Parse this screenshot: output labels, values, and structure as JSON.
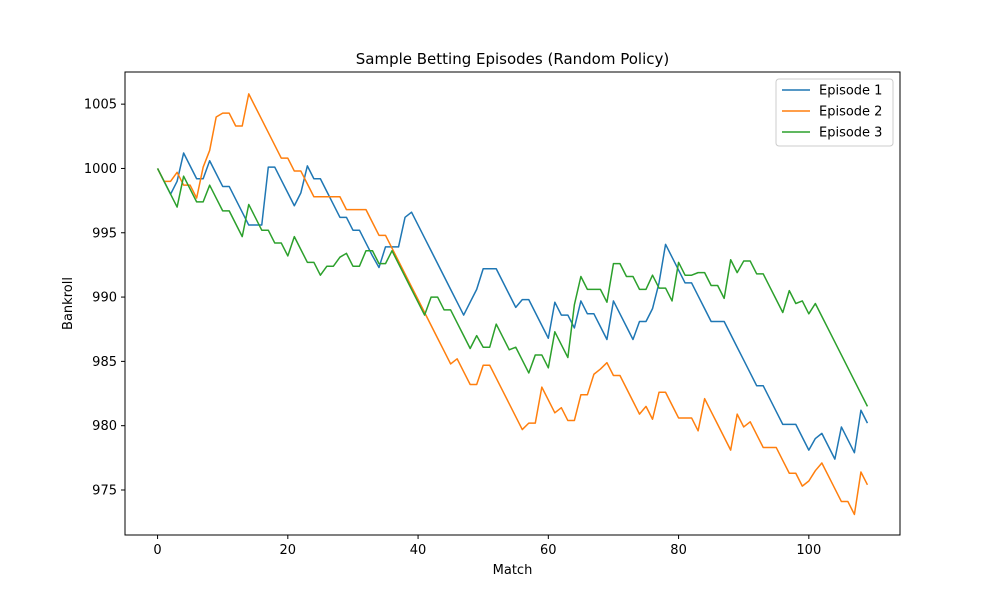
{
  "chart_data": {
    "type": "line",
    "title": "Sample Betting Episodes (Random Policy)",
    "xlabel": "Match",
    "ylabel": "Bankroll",
    "xlim": [
      -5,
      114
    ],
    "ylim": [
      971.5,
      1007.5
    ],
    "xticks": [
      0,
      20,
      40,
      60,
      80,
      100
    ],
    "yticks": [
      975,
      980,
      985,
      990,
      995,
      1000,
      1005
    ],
    "legend_position": "top-right",
    "grid": false,
    "series": [
      {
        "name": "Episode 1",
        "color": "#1f77b4",
        "values": [
          1000,
          999,
          998,
          999,
          1001.2,
          1000.2,
          999.2,
          999.2,
          1000.6,
          999.6,
          998.6,
          998.6,
          997.6,
          996.6,
          995.6,
          995.6,
          995.6,
          1000.1,
          1000.1,
          999.1,
          998.1,
          997.1,
          998.1,
          1000.2,
          999.2,
          999.2,
          998.2,
          997.2,
          996.2,
          996.2,
          995.2,
          995.2,
          994.2,
          993.2,
          992.3,
          993.9,
          993.9,
          993.9,
          996.2,
          996.6,
          995.6,
          994.6,
          993.6,
          992.6,
          991.6,
          990.6,
          989.6,
          988.6,
          989.6,
          990.6,
          992.2,
          992.2,
          992.2,
          991.2,
          990.2,
          989.2,
          989.8,
          989.8,
          988.8,
          987.8,
          986.8,
          989.6,
          988.6,
          988.6,
          987.6,
          989.7,
          988.7,
          988.7,
          987.7,
          986.7,
          989.7,
          988.7,
          987.7,
          986.7,
          988.1,
          988.1,
          989.1,
          991.1,
          994.1,
          993.1,
          992.1,
          991.1,
          991.1,
          990.1,
          989.1,
          988.1,
          988.1,
          988.1,
          987.1,
          986.1,
          985.1,
          984.1,
          983.1,
          983.1,
          982.1,
          981.1,
          980.1,
          980.1,
          980.1,
          979.1,
          978.1,
          979,
          979.4,
          978.4,
          977.4,
          979.9,
          978.9,
          977.9,
          981.2,
          980.2
        ]
      },
      {
        "name": "Episode 2",
        "color": "#ff7f0e",
        "values": [
          1000,
          999,
          999,
          999.7,
          998.7,
          998.7,
          997.7,
          1000.1,
          1001.4,
          1004,
          1004.3,
          1004.3,
          1003.3,
          1003.3,
          1005.8,
          1004.8,
          1003.8,
          1002.8,
          1001.8,
          1000.8,
          1000.8,
          999.8,
          999.8,
          998.8,
          997.8,
          997.8,
          997.8,
          997.8,
          997.8,
          996.8,
          996.8,
          996.8,
          996.8,
          995.8,
          994.8,
          994.8,
          993.8,
          992.8,
          991.8,
          990.8,
          989.8,
          988.8,
          987.8,
          986.8,
          985.8,
          984.8,
          985.2,
          984.2,
          983.2,
          983.2,
          984.7,
          984.7,
          983.7,
          982.7,
          981.7,
          980.7,
          979.7,
          980.2,
          980.2,
          983,
          982,
          981,
          981.4,
          980.4,
          980.4,
          982.4,
          982.4,
          984,
          984.4,
          984.9,
          983.9,
          983.9,
          982.9,
          981.9,
          980.9,
          981.5,
          980.5,
          982.6,
          982.6,
          981.6,
          980.6,
          980.6,
          980.6,
          979.6,
          982.1,
          981.1,
          980.1,
          979.1,
          978.1,
          980.9,
          979.9,
          980.3,
          979.3,
          978.3,
          978.3,
          978.3,
          977.3,
          976.3,
          976.3,
          975.3,
          975.7,
          976.5,
          977.1,
          976.1,
          975.1,
          974.1,
          974.1,
          973.1,
          976.4,
          975.4
        ]
      },
      {
        "name": "Episode 3",
        "color": "#2ca02c",
        "values": [
          1000,
          999,
          998,
          997,
          999.4,
          998.4,
          997.4,
          997.4,
          998.7,
          997.7,
          996.7,
          996.7,
          995.7,
          994.7,
          997.2,
          996.2,
          995.2,
          995.2,
          994.2,
          994.2,
          993.2,
          994.7,
          993.7,
          992.7,
          992.7,
          991.7,
          992.4,
          992.4,
          993.1,
          993.4,
          992.4,
          992.4,
          993.6,
          993.6,
          992.6,
          992.6,
          993.6,
          992.6,
          991.6,
          990.6,
          989.6,
          988.6,
          990,
          990,
          989,
          989,
          988,
          987,
          986,
          987,
          986.1,
          986.1,
          987.9,
          986.9,
          985.9,
          986.1,
          985.1,
          984.1,
          985.5,
          985.5,
          984.5,
          987.3,
          986.3,
          985.3,
          989.4,
          991.6,
          990.6,
          990.6,
          990.6,
          989.6,
          992.6,
          992.6,
          991.6,
          991.6,
          990.6,
          990.6,
          991.7,
          990.7,
          990.7,
          989.7,
          992.7,
          991.7,
          991.7,
          991.9,
          991.9,
          990.9,
          990.9,
          989.9,
          992.9,
          991.9,
          992.8,
          992.8,
          991.8,
          991.8,
          990.8,
          989.8,
          988.8,
          990.5,
          989.5,
          989.7,
          988.7,
          989.5,
          988.5,
          987.5,
          986.5,
          985.5,
          984.5,
          983.5,
          982.5,
          981.5
        ]
      }
    ]
  }
}
